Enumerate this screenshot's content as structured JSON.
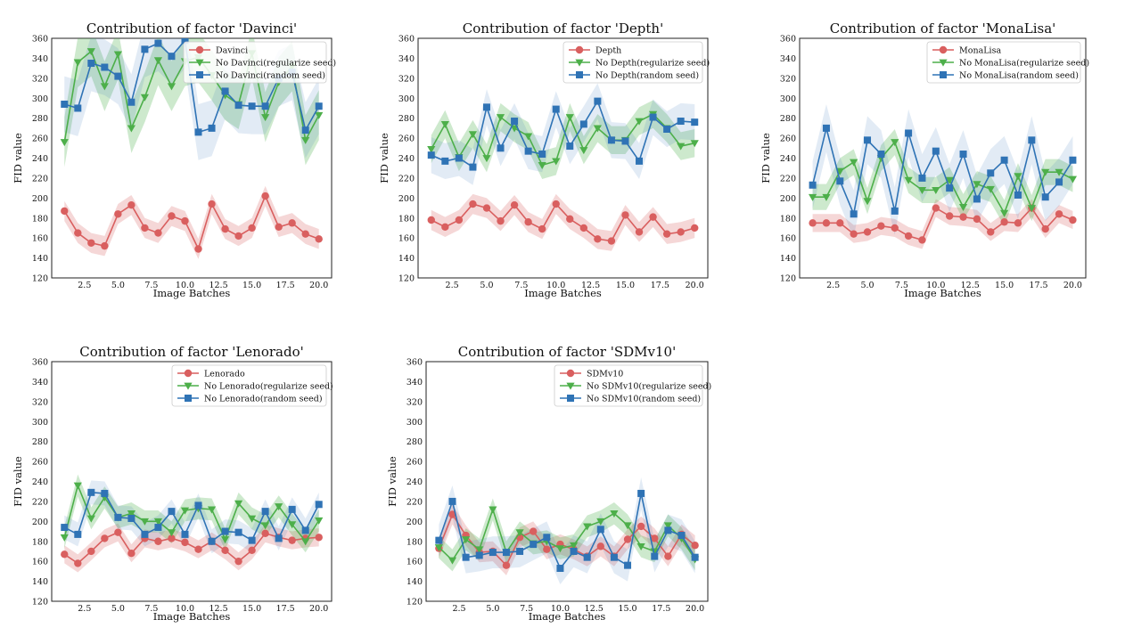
{
  "colors": {
    "base": "#d95f5f",
    "regularize": "#4daf4a",
    "random": "#2f73b5"
  },
  "chart_data": [
    {
      "type": "line",
      "title": "Contribution of factor 'Davinci'",
      "xlabel": "Image Batches",
      "ylabel": "FID value",
      "xlim": [
        0.05,
        20.95
      ],
      "ylim": [
        120,
        360
      ],
      "xticks": [
        "2.5",
        "5.0",
        "7.5",
        "10.0",
        "12.5",
        "15.0",
        "17.5",
        "20.0"
      ],
      "yticks": [
        "120",
        "140",
        "160",
        "180",
        "200",
        "220",
        "240",
        "260",
        "280",
        "300",
        "320",
        "340",
        "360"
      ],
      "legend": "top-right",
      "x": [
        1,
        2,
        3,
        4,
        5,
        6,
        7,
        8,
        9,
        10,
        11,
        12,
        13,
        14,
        15,
        16,
        17,
        18,
        19,
        20
      ],
      "series": [
        {
          "name": "Davinci",
          "marker": "circle",
          "values": [
            187,
            165,
            155,
            152,
            184,
            193,
            170,
            165,
            182,
            177,
            149,
            194,
            169,
            162,
            170,
            202,
            171,
            175,
            164,
            159
          ],
          "band": 10
        },
        {
          "name": "No Davinci(regularize seed)",
          "marker": "triangle",
          "values": [
            256,
            336,
            347,
            312,
            344,
            270,
            301,
            338,
            312,
            337,
            341,
            323,
            303,
            294,
            345,
            281,
            316,
            332,
            258,
            283
          ],
          "band": 25
        },
        {
          "name": "No Davinci(random seed)",
          "marker": "square",
          "values": [
            294,
            290,
            335,
            331,
            322,
            296,
            349,
            355,
            342,
            358,
            266,
            270,
            307,
            293,
            292,
            292,
            320,
            326,
            268,
            292
          ],
          "band": 28
        }
      ]
    },
    {
      "type": "line",
      "title": "Contribution of factor 'Depth'",
      "xlabel": "Image Batches",
      "ylabel": "FID value",
      "xlim": [
        0.05,
        20.95
      ],
      "ylim": [
        120,
        360
      ],
      "xticks": [
        "2.5",
        "5.0",
        "7.5",
        "10.0",
        "12.5",
        "15.0",
        "17.5",
        "20.0"
      ],
      "yticks": [
        "120",
        "140",
        "160",
        "180",
        "200",
        "220",
        "240",
        "260",
        "280",
        "300",
        "320",
        "340",
        "360"
      ],
      "legend": "top-right",
      "x": [
        1,
        2,
        3,
        4,
        5,
        6,
        7,
        8,
        9,
        10,
        11,
        12,
        13,
        14,
        15,
        16,
        17,
        18,
        19,
        20
      ],
      "series": [
        {
          "name": "Depth",
          "marker": "circle",
          "values": [
            178,
            171,
            178,
            194,
            190,
            177,
            193,
            176,
            169,
            194,
            179,
            170,
            159,
            157,
            183,
            166,
            181,
            164,
            166,
            170
          ],
          "band": 10
        },
        {
          "name": "No Depth(regularize seed)",
          "marker": "triangle",
          "values": [
            249,
            274,
            241,
            264,
            240,
            281,
            270,
            262,
            233,
            237,
            281,
            248,
            270,
            258,
            258,
            277,
            284,
            270,
            252,
            255
          ],
          "band": 14
        },
        {
          "name": "No Depth(random seed)",
          "marker": "square",
          "values": [
            243,
            237,
            240,
            231,
            291,
            250,
            277,
            247,
            244,
            289,
            252,
            274,
            297,
            258,
            257,
            237,
            281,
            269,
            277,
            276
          ],
          "band": 18
        }
      ]
    },
    {
      "type": "line",
      "title": "Contribution of factor 'MonaLisa'",
      "xlabel": "Image Batches",
      "ylabel": "FID value",
      "xlim": [
        0.05,
        20.95
      ],
      "ylim": [
        120,
        360
      ],
      "xticks": [
        "2.5",
        "5.0",
        "7.5",
        "10.0",
        "12.5",
        "15.0",
        "17.5",
        "20.0"
      ],
      "yticks": [
        "120",
        "140",
        "160",
        "180",
        "200",
        "220",
        "240",
        "260",
        "280",
        "300",
        "320",
        "340",
        "360"
      ],
      "legend": "top-right",
      "x": [
        1,
        2,
        3,
        4,
        5,
        6,
        7,
        8,
        9,
        10,
        11,
        12,
        13,
        14,
        15,
        16,
        17,
        18,
        19,
        20
      ],
      "series": [
        {
          "name": "MonaLisa",
          "marker": "circle",
          "values": [
            175,
            175,
            175,
            164,
            166,
            172,
            170,
            162,
            158,
            190,
            182,
            181,
            179,
            166,
            176,
            175,
            190,
            169,
            184,
            178
          ],
          "band": 9
        },
        {
          "name": "No MonaLisa(regularize seed)",
          "marker": "triangle",
          "values": [
            201,
            201,
            227,
            236,
            197,
            240,
            256,
            218,
            208,
            208,
            218,
            191,
            214,
            209,
            185,
            222,
            190,
            226,
            226,
            219
          ],
          "band": 13
        },
        {
          "name": "No MonaLisa(random seed)",
          "marker": "square",
          "values": [
            213,
            270,
            217,
            184,
            258,
            244,
            187,
            265,
            220,
            247,
            210,
            244,
            199,
            225,
            238,
            203,
            258,
            201,
            216,
            238
          ],
          "band": 24
        }
      ]
    },
    {
      "type": "line",
      "title": "Contribution of factor 'Lenorado'",
      "xlabel": "Image Batches",
      "ylabel": "FID value",
      "xlim": [
        0.05,
        20.95
      ],
      "ylim": [
        120,
        360
      ],
      "xticks": [
        "2.5",
        "5.0",
        "7.5",
        "10.0",
        "12.5",
        "15.0",
        "17.5",
        "20.0"
      ],
      "yticks": [
        "120",
        "140",
        "160",
        "180",
        "200",
        "220",
        "240",
        "260",
        "280",
        "300",
        "320",
        "340",
        "360"
      ],
      "legend": "top-right",
      "x": [
        1,
        2,
        3,
        4,
        5,
        6,
        7,
        8,
        9,
        10,
        11,
        12,
        13,
        14,
        15,
        16,
        17,
        18,
        19,
        20
      ],
      "series": [
        {
          "name": "Lenorado",
          "marker": "circle",
          "values": [
            167,
            158,
            170,
            183,
            189,
            168,
            183,
            180,
            183,
            179,
            172,
            180,
            171,
            160,
            171,
            188,
            184,
            181,
            183,
            184
          ],
          "band": 9
        },
        {
          "name": "No Lenorado(regularize seed)",
          "marker": "triangle",
          "values": [
            184,
            236,
            203,
            224,
            204,
            208,
            200,
            200,
            189,
            211,
            213,
            212,
            182,
            218,
            203,
            196,
            215,
            197,
            180,
            201
          ],
          "band": 11
        },
        {
          "name": "No Lenorado(random seed)",
          "marker": "square",
          "values": [
            194,
            187,
            229,
            228,
            204,
            203,
            187,
            194,
            210,
            187,
            216,
            180,
            190,
            189,
            181,
            210,
            183,
            212,
            191,
            217
          ],
          "band": 12
        }
      ]
    },
    {
      "type": "line",
      "title": "Contribution of factor 'SDMv10'",
      "xlabel": "Image Batches",
      "ylabel": "FID value",
      "xlim": [
        0.05,
        20.95
      ],
      "ylim": [
        120,
        360
      ],
      "xticks": [
        "2.5",
        "5.0",
        "7.5",
        "10.0",
        "12.5",
        "15.0",
        "17.5",
        "20.0"
      ],
      "yticks": [
        "120",
        "140",
        "160",
        "180",
        "200",
        "220",
        "240",
        "260",
        "280",
        "300",
        "320",
        "340",
        "360"
      ],
      "legend": "top-right",
      "x": [
        1,
        2,
        3,
        4,
        5,
        6,
        7,
        8,
        9,
        10,
        11,
        12,
        13,
        14,
        15,
        16,
        17,
        18,
        19,
        20
      ],
      "series": [
        {
          "name": "SDMv10",
          "marker": "circle",
          "values": [
            173,
            207,
            186,
            169,
            170,
            156,
            184,
            190,
            172,
            177,
            172,
            165,
            175,
            165,
            182,
            195,
            183,
            165,
            187,
            176
          ],
          "band": 10
        },
        {
          "name": "No SDMv10(regularize seed)",
          "marker": "triangle",
          "values": [
            174,
            161,
            182,
            172,
            212,
            169,
            189,
            178,
            180,
            173,
            176,
            195,
            200,
            208,
            196,
            175,
            170,
            196,
            183,
            162
          ],
          "band": 11
        },
        {
          "name": "No SDMv10(random seed)",
          "marker": "square",
          "values": [
            181,
            220,
            164,
            166,
            169,
            169,
            170,
            177,
            184,
            153,
            170,
            164,
            192,
            164,
            156,
            228,
            165,
            191,
            186,
            164
          ],
          "band": 16
        }
      ]
    }
  ]
}
